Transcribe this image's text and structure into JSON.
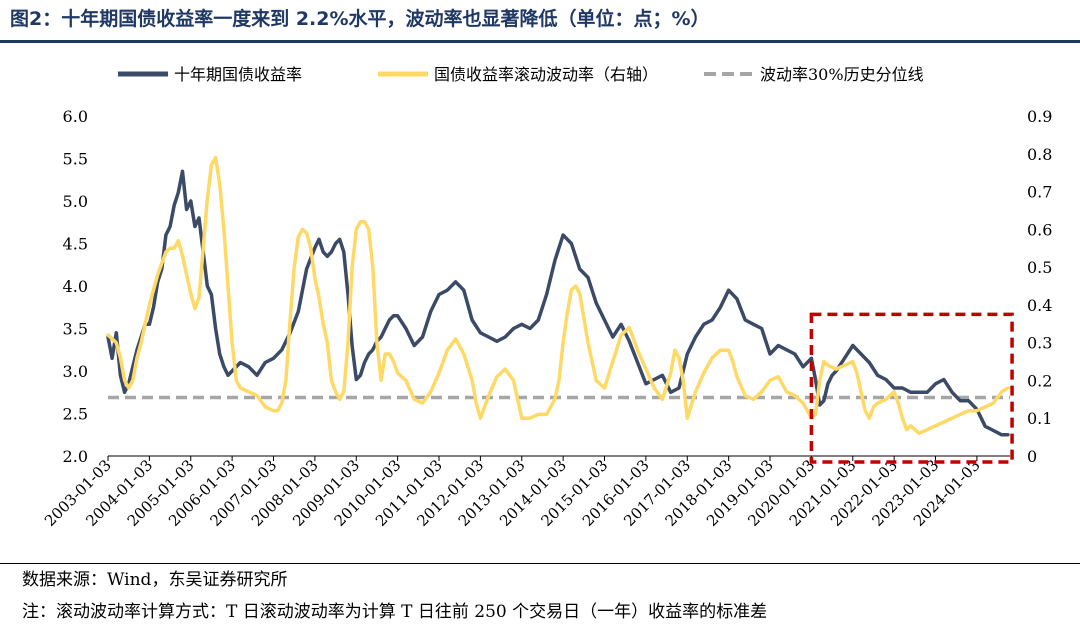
{
  "title": "图2：十年期国债收益率一度来到 2.2%水平，波动率也显著降低（单位：点；%）",
  "source": "数据来源：Wind，东吴证券研究所",
  "note": "注：滚动波动率计算方式：T 日滚动波动率为计算 T 日往前 250 个交易日（一年）收益率的标准差",
  "colors": {
    "yield": "#3b4a66",
    "vol": "#ffd966",
    "ref": "#a6a6a6",
    "box": "#c00000",
    "title": "#1f3864"
  },
  "chart_data": {
    "type": "line",
    "title": "十年期国债收益率一度来到 2.2%水平，波动率也显著降低",
    "y_left": {
      "lim": [
        2.0,
        6.0
      ],
      "ticks": [
        "2.0",
        "2.5",
        "3.0",
        "3.5",
        "4.0",
        "4.5",
        "5.0",
        "5.5",
        "6.0"
      ]
    },
    "y_right": {
      "lim": [
        0,
        0.9
      ],
      "ticks": [
        "0",
        "0.1",
        "0.2",
        "0.3",
        "0.4",
        "0.5",
        "0.6",
        "0.7",
        "0.8",
        "0.9"
      ]
    },
    "x_range": [
      2003.0,
      2024.8
    ],
    "x_ticks": [
      "2003-01-03",
      "2004-01-03",
      "2005-01-03",
      "2006-01-03",
      "2007-01-03",
      "2008-01-03",
      "2009-01-03",
      "2010-01-03",
      "2011-01-03",
      "2012-01-03",
      "2013-01-03",
      "2014-01-03",
      "2015-01-03",
      "2016-01-03",
      "2017-01-03",
      "2018-01-03",
      "2019-01-03",
      "2020-01-03",
      "2021-01-03",
      "2022-01-03",
      "2023-01-03",
      "2024-01-03"
    ],
    "legend": [
      "十年期国债收益率",
      "国债收益率滚动波动率（右轴）",
      "波动率30%历史分位线"
    ],
    "legend_position": "top",
    "reference_line": {
      "axis": "right",
      "value": 0.155,
      "label": "波动率30%历史分位线"
    },
    "highlight_box": {
      "x": [
        2020.0,
        2024.85
      ],
      "y_right": [
        0,
        0.375
      ]
    },
    "series": [
      {
        "name": "十年期国债收益率",
        "axis": "left",
        "points": [
          [
            2003.0,
            3.4
          ],
          [
            2003.1,
            3.15
          ],
          [
            2003.2,
            3.45
          ],
          [
            2003.3,
            2.95
          ],
          [
            2003.4,
            2.75
          ],
          [
            2003.5,
            2.85
          ],
          [
            2003.6,
            3.05
          ],
          [
            2003.7,
            3.25
          ],
          [
            2003.8,
            3.4
          ],
          [
            2003.9,
            3.55
          ],
          [
            2004.0,
            3.55
          ],
          [
            2004.1,
            3.75
          ],
          [
            2004.2,
            4.05
          ],
          [
            2004.3,
            4.2
          ],
          [
            2004.4,
            4.6
          ],
          [
            2004.5,
            4.7
          ],
          [
            2004.6,
            4.95
          ],
          [
            2004.7,
            5.1
          ],
          [
            2004.8,
            5.35
          ],
          [
            2004.9,
            4.9
          ],
          [
            2005.0,
            5.0
          ],
          [
            2005.1,
            4.7
          ],
          [
            2005.2,
            4.8
          ],
          [
            2005.3,
            4.4
          ],
          [
            2005.4,
            4.0
          ],
          [
            2005.5,
            3.9
          ],
          [
            2005.6,
            3.5
          ],
          [
            2005.7,
            3.2
          ],
          [
            2005.8,
            3.05
          ],
          [
            2005.9,
            2.95
          ],
          [
            2006.0,
            3.0
          ],
          [
            2006.2,
            3.1
          ],
          [
            2006.4,
            3.05
          ],
          [
            2006.6,
            2.95
          ],
          [
            2006.8,
            3.1
          ],
          [
            2007.0,
            3.15
          ],
          [
            2007.2,
            3.25
          ],
          [
            2007.4,
            3.45
          ],
          [
            2007.6,
            3.7
          ],
          [
            2007.8,
            4.2
          ],
          [
            2008.0,
            4.45
          ],
          [
            2008.1,
            4.55
          ],
          [
            2008.2,
            4.4
          ],
          [
            2008.3,
            4.35
          ],
          [
            2008.4,
            4.4
          ],
          [
            2008.5,
            4.5
          ],
          [
            2008.6,
            4.55
          ],
          [
            2008.7,
            4.4
          ],
          [
            2008.8,
            3.9
          ],
          [
            2008.9,
            3.3
          ],
          [
            2009.0,
            2.9
          ],
          [
            2009.1,
            2.95
          ],
          [
            2009.2,
            3.1
          ],
          [
            2009.3,
            3.2
          ],
          [
            2009.4,
            3.25
          ],
          [
            2009.5,
            3.35
          ],
          [
            2009.6,
            3.4
          ],
          [
            2009.7,
            3.5
          ],
          [
            2009.8,
            3.6
          ],
          [
            2009.9,
            3.65
          ],
          [
            2010.0,
            3.65
          ],
          [
            2010.2,
            3.5
          ],
          [
            2010.4,
            3.3
          ],
          [
            2010.6,
            3.4
          ],
          [
            2010.8,
            3.7
          ],
          [
            2011.0,
            3.9
          ],
          [
            2011.2,
            3.95
          ],
          [
            2011.4,
            4.05
          ],
          [
            2011.6,
            3.95
          ],
          [
            2011.8,
            3.6
          ],
          [
            2012.0,
            3.45
          ],
          [
            2012.2,
            3.4
          ],
          [
            2012.4,
            3.35
          ],
          [
            2012.6,
            3.4
          ],
          [
            2012.8,
            3.5
          ],
          [
            2013.0,
            3.55
          ],
          [
            2013.2,
            3.5
          ],
          [
            2013.4,
            3.6
          ],
          [
            2013.6,
            3.9
          ],
          [
            2013.8,
            4.3
          ],
          [
            2014.0,
            4.6
          ],
          [
            2014.1,
            4.55
          ],
          [
            2014.2,
            4.5
          ],
          [
            2014.4,
            4.2
          ],
          [
            2014.6,
            4.1
          ],
          [
            2014.8,
            3.8
          ],
          [
            2015.0,
            3.6
          ],
          [
            2015.2,
            3.4
          ],
          [
            2015.4,
            3.55
          ],
          [
            2015.6,
            3.35
          ],
          [
            2015.8,
            3.1
          ],
          [
            2016.0,
            2.85
          ],
          [
            2016.2,
            2.9
          ],
          [
            2016.4,
            2.95
          ],
          [
            2016.6,
            2.75
          ],
          [
            2016.8,
            2.8
          ],
          [
            2017.0,
            3.2
          ],
          [
            2017.2,
            3.4
          ],
          [
            2017.4,
            3.55
          ],
          [
            2017.6,
            3.6
          ],
          [
            2017.8,
            3.75
          ],
          [
            2018.0,
            3.95
          ],
          [
            2018.2,
            3.85
          ],
          [
            2018.4,
            3.6
          ],
          [
            2018.6,
            3.55
          ],
          [
            2018.8,
            3.5
          ],
          [
            2019.0,
            3.2
          ],
          [
            2019.2,
            3.3
          ],
          [
            2019.4,
            3.25
          ],
          [
            2019.6,
            3.2
          ],
          [
            2019.8,
            3.05
          ],
          [
            2020.0,
            3.15
          ],
          [
            2020.1,
            2.9
          ],
          [
            2020.2,
            2.6
          ],
          [
            2020.3,
            2.65
          ],
          [
            2020.4,
            2.85
          ],
          [
            2020.5,
            2.95
          ],
          [
            2020.6,
            3.0
          ],
          [
            2020.8,
            3.15
          ],
          [
            2021.0,
            3.3
          ],
          [
            2021.2,
            3.2
          ],
          [
            2021.4,
            3.1
          ],
          [
            2021.6,
            2.95
          ],
          [
            2021.8,
            2.9
          ],
          [
            2022.0,
            2.8
          ],
          [
            2022.2,
            2.8
          ],
          [
            2022.4,
            2.75
          ],
          [
            2022.6,
            2.75
          ],
          [
            2022.8,
            2.75
          ],
          [
            2023.0,
            2.85
          ],
          [
            2023.2,
            2.9
          ],
          [
            2023.4,
            2.75
          ],
          [
            2023.6,
            2.65
          ],
          [
            2023.8,
            2.65
          ],
          [
            2024.0,
            2.55
          ],
          [
            2024.2,
            2.35
          ],
          [
            2024.4,
            2.3
          ],
          [
            2024.6,
            2.25
          ],
          [
            2024.75,
            2.25
          ]
        ]
      },
      {
        "name": "国债收益率滚动波动率（右轴）",
        "axis": "right",
        "points": [
          [
            2003.0,
            0.32
          ],
          [
            2003.2,
            0.3
          ],
          [
            2003.3,
            0.26
          ],
          [
            2003.4,
            0.2
          ],
          [
            2003.5,
            0.18
          ],
          [
            2003.6,
            0.2
          ],
          [
            2003.7,
            0.26
          ],
          [
            2003.8,
            0.3
          ],
          [
            2003.9,
            0.35
          ],
          [
            2004.0,
            0.4
          ],
          [
            2004.2,
            0.48
          ],
          [
            2004.4,
            0.54
          ],
          [
            2004.5,
            0.55
          ],
          [
            2004.6,
            0.55
          ],
          [
            2004.7,
            0.57
          ],
          [
            2004.8,
            0.53
          ],
          [
            2004.9,
            0.48
          ],
          [
            2005.0,
            0.43
          ],
          [
            2005.1,
            0.39
          ],
          [
            2005.2,
            0.42
          ],
          [
            2005.3,
            0.55
          ],
          [
            2005.4,
            0.68
          ],
          [
            2005.5,
            0.77
          ],
          [
            2005.6,
            0.79
          ],
          [
            2005.7,
            0.72
          ],
          [
            2005.8,
            0.6
          ],
          [
            2005.9,
            0.45
          ],
          [
            2006.0,
            0.3
          ],
          [
            2006.1,
            0.2
          ],
          [
            2006.2,
            0.18
          ],
          [
            2006.4,
            0.17
          ],
          [
            2006.6,
            0.16
          ],
          [
            2006.8,
            0.13
          ],
          [
            2007.0,
            0.12
          ],
          [
            2007.1,
            0.12
          ],
          [
            2007.2,
            0.14
          ],
          [
            2007.3,
            0.2
          ],
          [
            2007.4,
            0.36
          ],
          [
            2007.5,
            0.5
          ],
          [
            2007.6,
            0.58
          ],
          [
            2007.7,
            0.6
          ],
          [
            2007.8,
            0.59
          ],
          [
            2007.9,
            0.55
          ],
          [
            2008.0,
            0.47
          ],
          [
            2008.1,
            0.42
          ],
          [
            2008.2,
            0.35
          ],
          [
            2008.3,
            0.3
          ],
          [
            2008.4,
            0.2
          ],
          [
            2008.5,
            0.17
          ],
          [
            2008.6,
            0.15
          ],
          [
            2008.7,
            0.17
          ],
          [
            2008.8,
            0.3
          ],
          [
            2008.9,
            0.5
          ],
          [
            2009.0,
            0.6
          ],
          [
            2009.1,
            0.62
          ],
          [
            2009.2,
            0.62
          ],
          [
            2009.3,
            0.6
          ],
          [
            2009.4,
            0.5
          ],
          [
            2009.5,
            0.3
          ],
          [
            2009.6,
            0.2
          ],
          [
            2009.7,
            0.27
          ],
          [
            2009.8,
            0.27
          ],
          [
            2009.9,
            0.25
          ],
          [
            2010.0,
            0.22
          ],
          [
            2010.2,
            0.2
          ],
          [
            2010.4,
            0.15
          ],
          [
            2010.6,
            0.14
          ],
          [
            2010.8,
            0.17
          ],
          [
            2011.0,
            0.22
          ],
          [
            2011.2,
            0.28
          ],
          [
            2011.4,
            0.31
          ],
          [
            2011.6,
            0.27
          ],
          [
            2011.8,
            0.2
          ],
          [
            2011.9,
            0.14
          ],
          [
            2012.0,
            0.1
          ],
          [
            2012.2,
            0.16
          ],
          [
            2012.4,
            0.21
          ],
          [
            2012.6,
            0.23
          ],
          [
            2012.8,
            0.2
          ],
          [
            2012.9,
            0.15
          ],
          [
            2013.0,
            0.1
          ],
          [
            2013.2,
            0.1
          ],
          [
            2013.4,
            0.11
          ],
          [
            2013.6,
            0.11
          ],
          [
            2013.8,
            0.15
          ],
          [
            2013.9,
            0.2
          ],
          [
            2014.0,
            0.3
          ],
          [
            2014.1,
            0.38
          ],
          [
            2014.2,
            0.44
          ],
          [
            2014.3,
            0.45
          ],
          [
            2014.4,
            0.43
          ],
          [
            2014.6,
            0.3
          ],
          [
            2014.8,
            0.2
          ],
          [
            2015.0,
            0.18
          ],
          [
            2015.2,
            0.25
          ],
          [
            2015.4,
            0.32
          ],
          [
            2015.6,
            0.34
          ],
          [
            2015.8,
            0.28
          ],
          [
            2016.0,
            0.23
          ],
          [
            2016.2,
            0.18
          ],
          [
            2016.4,
            0.15
          ],
          [
            2016.6,
            0.22
          ],
          [
            2016.7,
            0.28
          ],
          [
            2016.8,
            0.26
          ],
          [
            2016.9,
            0.2
          ],
          [
            2017.0,
            0.1
          ],
          [
            2017.2,
            0.17
          ],
          [
            2017.4,
            0.22
          ],
          [
            2017.6,
            0.26
          ],
          [
            2017.8,
            0.28
          ],
          [
            2018.0,
            0.28
          ],
          [
            2018.1,
            0.25
          ],
          [
            2018.2,
            0.21
          ],
          [
            2018.4,
            0.16
          ],
          [
            2018.6,
            0.15
          ],
          [
            2018.8,
            0.17
          ],
          [
            2019.0,
            0.2
          ],
          [
            2019.2,
            0.21
          ],
          [
            2019.4,
            0.17
          ],
          [
            2019.6,
            0.16
          ],
          [
            2019.8,
            0.14
          ],
          [
            2020.0,
            0.1
          ],
          [
            2020.1,
            0.11
          ],
          [
            2020.2,
            0.2
          ],
          [
            2020.3,
            0.25
          ],
          [
            2020.4,
            0.24
          ],
          [
            2020.6,
            0.23
          ],
          [
            2020.8,
            0.24
          ],
          [
            2021.0,
            0.25
          ],
          [
            2021.1,
            0.22
          ],
          [
            2021.2,
            0.17
          ],
          [
            2021.3,
            0.12
          ],
          [
            2021.4,
            0.1
          ],
          [
            2021.5,
            0.13
          ],
          [
            2021.6,
            0.14
          ],
          [
            2021.8,
            0.15
          ],
          [
            2021.9,
            0.16
          ],
          [
            2022.0,
            0.17
          ],
          [
            2022.1,
            0.14
          ],
          [
            2022.2,
            0.1
          ],
          [
            2022.3,
            0.07
          ],
          [
            2022.4,
            0.08
          ],
          [
            2022.6,
            0.06
          ],
          [
            2022.8,
            0.07
          ],
          [
            2023.0,
            0.08
          ],
          [
            2023.2,
            0.09
          ],
          [
            2023.4,
            0.1
          ],
          [
            2023.6,
            0.11
          ],
          [
            2023.8,
            0.12
          ],
          [
            2024.0,
            0.12
          ],
          [
            2024.2,
            0.13
          ],
          [
            2024.4,
            0.14
          ],
          [
            2024.6,
            0.17
          ],
          [
            2024.75,
            0.18
          ]
        ]
      }
    ]
  }
}
